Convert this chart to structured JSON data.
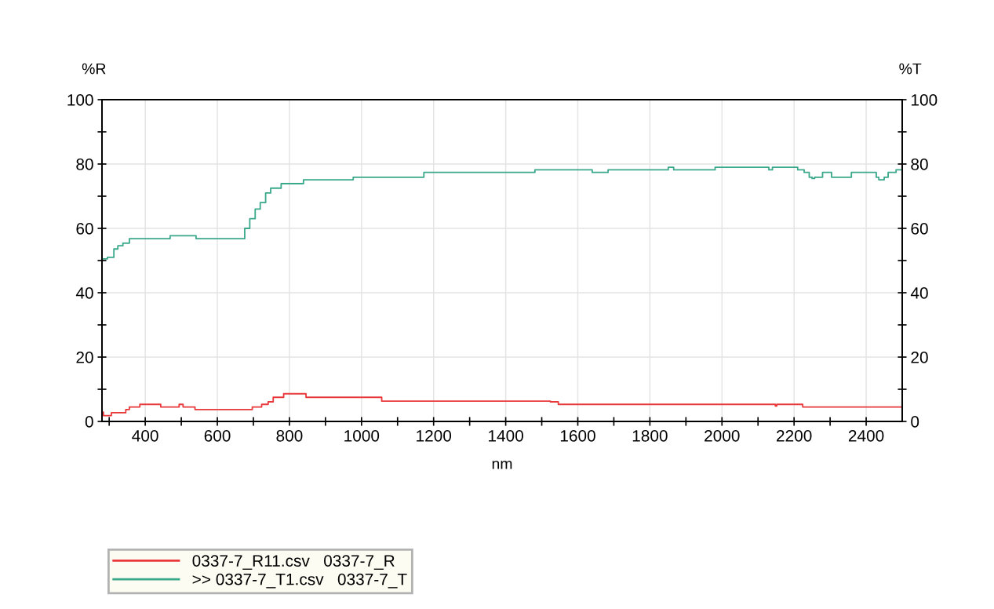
{
  "chart_data": {
    "type": "step",
    "xlabel": "nm",
    "ylabel": "%R",
    "y2label": "%T",
    "xlim": [
      280,
      2500
    ],
    "xticks": [
      {
        "value": 300,
        "label": null
      },
      400,
      {
        "value": 500,
        "label": null
      },
      600,
      {
        "value": 700,
        "label": null
      },
      800,
      {
        "value": 900,
        "label": null
      },
      1000,
      {
        "value": 1100,
        "label": null
      },
      1200,
      {
        "value": 1300,
        "label": null
      },
      1400,
      {
        "value": 1500,
        "label": null
      },
      1600,
      {
        "value": 1700,
        "label": null
      },
      1800,
      {
        "value": 1900,
        "label": null
      },
      2000,
      {
        "value": 2100,
        "label": null
      },
      2200,
      {
        "value": 2300,
        "label": null
      },
      2400
    ],
    "ylim": [
      0,
      100
    ],
    "yticks": [
      0,
      {
        "value": 10,
        "label": null
      },
      20,
      {
        "value": 30,
        "label": null
      },
      40,
      {
        "value": 50,
        "label": null
      },
      60,
      {
        "value": 70,
        "label": null
      },
      80,
      {
        "value": 90,
        "label": null
      },
      100
    ],
    "y2lim": [
      0,
      100
    ],
    "y2ticks": [
      0,
      {
        "value": 10,
        "label": null
      },
      20,
      {
        "value": 30,
        "label": null
      },
      40,
      {
        "value": 50,
        "label": null
      },
      60,
      {
        "value": 70,
        "label": null
      },
      80,
      {
        "value": 90,
        "label": null
      },
      100
    ],
    "grid": true,
    "legend": "bottom left",
    "series": [
      {
        "name": "0337-7_R11.csv   0337-7_R",
        "color": "#e8383a",
        "x": [
          280,
          284,
          306,
          346,
          356,
          385,
          443,
          494,
          505,
          538,
          697,
          723,
          741,
          755,
          784,
          846,
          1056,
          1524,
          1546,
          2148,
          2152,
          2224,
          2500
        ],
        "values": [
          2.9,
          1.8,
          2.7,
          3.7,
          4.5,
          5.3,
          4.5,
          5.3,
          4.5,
          3.7,
          4.5,
          5.3,
          6.1,
          7.5,
          8.6,
          7.5,
          6.3,
          6.1,
          5.3,
          4.8,
          5.3,
          4.5,
          4.5
        ]
      },
      {
        "name": ">> 0337-7_T1.csv   0337-7_T",
        "color": "#3aa88a",
        "axis": "y2",
        "x": [
          280,
          295,
          313,
          324,
          338,
          356,
          375,
          469,
          541,
          661,
          676,
          690,
          705,
          719,
          734,
          748,
          777,
          839,
          977,
          1173,
          1481,
          1640,
          1684,
          1851,
          1866,
          1981,
          2130,
          2140,
          2210,
          2228,
          2242,
          2250,
          2257,
          2279,
          2304,
          2359,
          2428,
          2435,
          2450,
          2461,
          2483,
          2500
        ],
        "values": [
          50.5,
          51,
          53.6,
          54.6,
          55.4,
          56.8,
          56.8,
          57.7,
          56.8,
          56.8,
          60,
          63,
          66,
          68,
          71,
          72.5,
          73.9,
          75.1,
          75.9,
          77.4,
          78.2,
          77.4,
          78.2,
          79,
          78.2,
          79,
          78.2,
          79,
          78.2,
          77.4,
          75.9,
          75.5,
          75.9,
          77.4,
          75.9,
          77.4,
          75.9,
          75.1,
          75.9,
          77.4,
          78.2,
          78.2
        ]
      }
    ]
  }
}
